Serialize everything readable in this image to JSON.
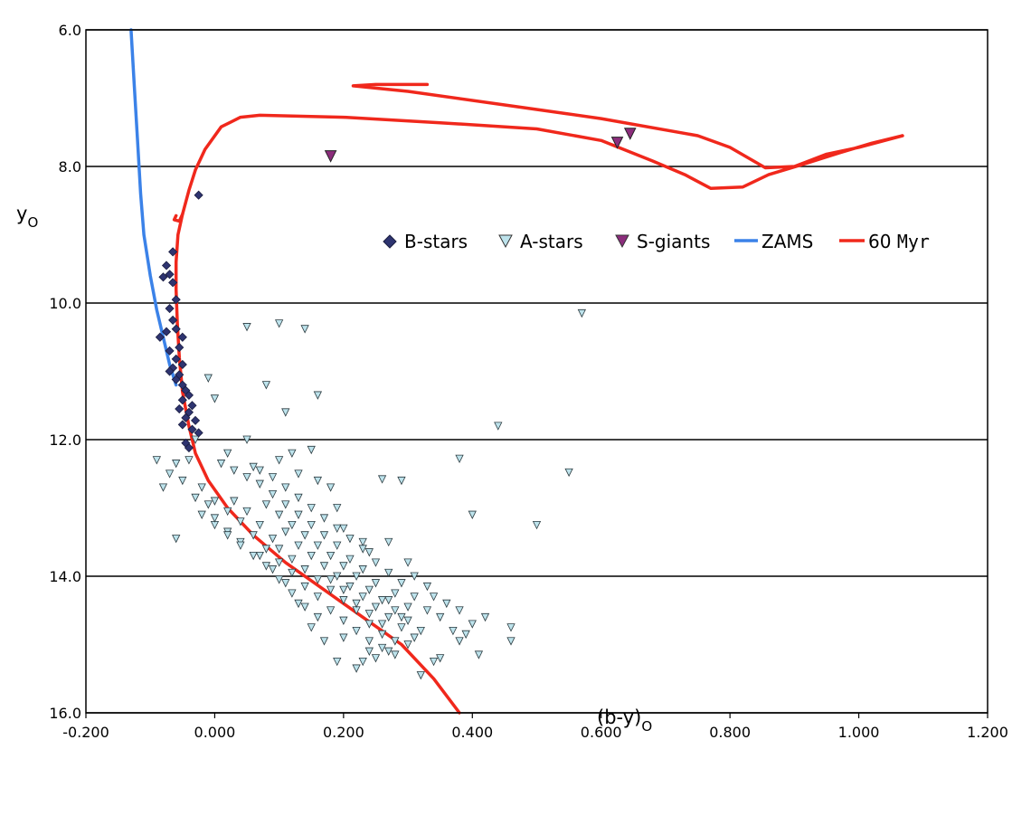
{
  "chart_data": {
    "type": "scatter",
    "title": "",
    "xlabel": "(b-y)",
    "xlabel_sub": "O",
    "ylabel": "y",
    "ylabel_sub": "O",
    "xlim": [
      -0.2,
      1.2
    ],
    "ylim": [
      16.0,
      6.0
    ],
    "y_inverted": true,
    "x_ticks": [
      -0.2,
      0.0,
      0.2,
      0.4,
      0.6,
      0.8,
      1.0,
      1.2
    ],
    "x_tick_labels": [
      "-0.200",
      "0.000",
      "0.200",
      "0.400",
      "0.600",
      "0.800",
      "1.000",
      "1.200"
    ],
    "y_ticks": [
      6.0,
      8.0,
      10.0,
      12.0,
      14.0,
      16.0
    ],
    "y_tick_labels": [
      "6.0",
      "8.0",
      "10.0",
      "12.0",
      "14.0",
      "16.0"
    ],
    "grid": "horizontal",
    "legend_position": "right-middle",
    "legend": [
      {
        "label": "B-stars",
        "marker": "diamond",
        "color": "#2e3470"
      },
      {
        "label": "A-stars",
        "marker": "triangle-down",
        "color": "#bde3ec"
      },
      {
        "label": "S-giants",
        "marker": "triangle-down",
        "color": "#8c2d7c"
      },
      {
        "label": "ZAMS",
        "marker": "line",
        "color": "#3b82e8"
      },
      {
        "label": "60 ",
        "label_mono": "Myr",
        "marker": "line",
        "color": "#f0281c"
      }
    ],
    "series": [
      {
        "name": "B-stars",
        "kind": "scatter",
        "marker": "diamond",
        "color": "#2e3470",
        "points": [
          [
            -0.025,
            8.42
          ],
          [
            -0.065,
            9.25
          ],
          [
            -0.075,
            9.45
          ],
          [
            -0.07,
            9.58
          ],
          [
            -0.08,
            9.62
          ],
          [
            -0.065,
            9.7
          ],
          [
            -0.06,
            9.95
          ],
          [
            -0.07,
            10.08
          ],
          [
            -0.065,
            10.25
          ],
          [
            -0.06,
            10.38
          ],
          [
            -0.075,
            10.42
          ],
          [
            -0.05,
            10.5
          ],
          [
            -0.085,
            10.5
          ],
          [
            -0.055,
            10.65
          ],
          [
            -0.07,
            10.7
          ],
          [
            -0.06,
            10.82
          ],
          [
            -0.05,
            10.9
          ],
          [
            -0.065,
            10.95
          ],
          [
            -0.07,
            11.0
          ],
          [
            -0.055,
            11.05
          ],
          [
            -0.06,
            11.12
          ],
          [
            -0.05,
            11.2
          ],
          [
            -0.045,
            11.28
          ],
          [
            -0.04,
            11.35
          ],
          [
            -0.05,
            11.42
          ],
          [
            -0.035,
            11.5
          ],
          [
            -0.055,
            11.55
          ],
          [
            -0.04,
            11.6
          ],
          [
            -0.045,
            11.68
          ],
          [
            -0.03,
            11.72
          ],
          [
            -0.05,
            11.78
          ],
          [
            -0.035,
            11.85
          ],
          [
            -0.025,
            11.9
          ],
          [
            -0.045,
            12.05
          ],
          [
            -0.04,
            12.12
          ]
        ]
      },
      {
        "name": "A-stars",
        "kind": "scatter",
        "marker": "triangle-down",
        "color": "#bde3ec",
        "points": [
          [
            0.05,
            10.35
          ],
          [
            0.1,
            10.3
          ],
          [
            0.14,
            10.38
          ],
          [
            0.57,
            10.15
          ],
          [
            0.08,
            11.2
          ],
          [
            0.16,
            11.35
          ],
          [
            -0.01,
            11.1
          ],
          [
            0.0,
            11.4
          ],
          [
            0.11,
            11.6
          ],
          [
            0.44,
            11.8
          ],
          [
            -0.03,
            12.0
          ],
          [
            0.05,
            12.0
          ],
          [
            0.38,
            12.28
          ],
          [
            0.55,
            12.48
          ],
          [
            0.26,
            12.58
          ],
          [
            0.29,
            12.6
          ],
          [
            0.4,
            13.1
          ],
          [
            0.5,
            13.25
          ],
          [
            -0.06,
            13.45
          ],
          [
            -0.09,
            12.3
          ],
          [
            -0.08,
            12.7
          ],
          [
            -0.07,
            12.5
          ],
          [
            -0.06,
            12.35
          ],
          [
            0.02,
            12.2
          ],
          [
            0.06,
            12.4
          ],
          [
            0.1,
            12.3
          ],
          [
            0.12,
            12.2
          ],
          [
            0.15,
            12.15
          ],
          [
            0.13,
            12.5
          ],
          [
            0.16,
            12.6
          ],
          [
            0.18,
            12.7
          ],
          [
            0.19,
            13.0
          ],
          [
            0.2,
            13.3
          ],
          [
            0.23,
            13.5
          ],
          [
            0.24,
            13.65
          ],
          [
            0.27,
            13.5
          ],
          [
            0.3,
            13.8
          ],
          [
            0.31,
            14.0
          ],
          [
            0.33,
            14.15
          ],
          [
            0.34,
            14.3
          ],
          [
            0.35,
            14.6
          ],
          [
            0.37,
            14.8
          ],
          [
            0.38,
            14.95
          ],
          [
            0.39,
            14.85
          ],
          [
            0.4,
            14.7
          ],
          [
            0.42,
            14.6
          ],
          [
            0.46,
            14.75
          ],
          [
            0.46,
            14.95
          ],
          [
            0.41,
            15.15
          ],
          [
            0.35,
            15.2
          ],
          [
            0.34,
            15.25
          ],
          [
            0.32,
            15.45
          ],
          [
            0.27,
            15.1
          ],
          [
            0.25,
            15.2
          ],
          [
            0.23,
            15.25
          ],
          [
            0.22,
            15.35
          ],
          [
            0.19,
            15.25
          ],
          [
            0.17,
            14.95
          ],
          [
            0.15,
            14.75
          ],
          [
            0.13,
            14.4
          ],
          [
            0.11,
            14.1
          ],
          [
            0.09,
            13.9
          ],
          [
            0.07,
            13.7
          ],
          [
            0.04,
            13.5
          ],
          [
            0.02,
            13.35
          ],
          [
            0.0,
            13.25
          ],
          [
            -0.02,
            13.1
          ],
          [
            -0.03,
            12.85
          ],
          [
            -0.05,
            12.6
          ],
          [
            -0.04,
            12.3
          ],
          [
            0.03,
            12.9
          ],
          [
            0.05,
            13.05
          ],
          [
            0.07,
            13.25
          ],
          [
            0.09,
            13.45
          ],
          [
            0.1,
            13.6
          ],
          [
            0.12,
            13.75
          ],
          [
            0.14,
            13.9
          ],
          [
            0.16,
            14.05
          ],
          [
            0.18,
            14.2
          ],
          [
            0.2,
            14.35
          ],
          [
            0.22,
            14.5
          ],
          [
            0.24,
            14.7
          ],
          [
            0.26,
            14.85
          ],
          [
            0.28,
            14.95
          ],
          [
            0.29,
            14.6
          ],
          [
            0.27,
            14.35
          ],
          [
            0.25,
            14.1
          ],
          [
            0.23,
            13.9
          ],
          [
            0.21,
            13.75
          ],
          [
            0.19,
            13.55
          ],
          [
            0.17,
            13.4
          ],
          [
            0.15,
            13.25
          ],
          [
            0.13,
            13.1
          ],
          [
            0.11,
            12.95
          ],
          [
            0.09,
            12.8
          ],
          [
            0.07,
            12.65
          ],
          [
            0.05,
            12.55
          ],
          [
            0.03,
            12.45
          ],
          [
            0.01,
            12.35
          ],
          [
            0.11,
            13.35
          ],
          [
            0.13,
            13.55
          ],
          [
            0.15,
            13.7
          ],
          [
            0.17,
            13.85
          ],
          [
            0.19,
            14.0
          ],
          [
            0.21,
            14.15
          ],
          [
            0.23,
            14.3
          ],
          [
            0.25,
            14.45
          ],
          [
            0.27,
            14.6
          ],
          [
            0.29,
            14.75
          ],
          [
            0.31,
            14.9
          ],
          [
            0.33,
            14.5
          ],
          [
            0.31,
            14.3
          ],
          [
            0.29,
            14.1
          ],
          [
            0.27,
            13.95
          ],
          [
            0.25,
            13.8
          ],
          [
            0.23,
            13.6
          ],
          [
            0.21,
            13.45
          ],
          [
            0.19,
            13.3
          ],
          [
            0.17,
            13.15
          ],
          [
            0.15,
            13.0
          ],
          [
            0.13,
            12.85
          ],
          [
            0.11,
            12.7
          ],
          [
            0.09,
            12.55
          ],
          [
            0.07,
            12.45
          ],
          [
            0.18,
            14.5
          ],
          [
            0.2,
            14.65
          ],
          [
            0.22,
            14.8
          ],
          [
            0.24,
            14.95
          ],
          [
            0.26,
            15.05
          ],
          [
            0.16,
            14.3
          ],
          [
            0.14,
            14.15
          ],
          [
            0.12,
            13.95
          ],
          [
            0.1,
            13.8
          ],
          [
            0.08,
            13.6
          ],
          [
            0.06,
            13.4
          ],
          [
            0.04,
            13.2
          ],
          [
            0.02,
            13.05
          ],
          [
            0.0,
            12.9
          ],
          [
            -0.02,
            12.7
          ],
          [
            0.36,
            14.4
          ],
          [
            0.38,
            14.5
          ],
          [
            0.3,
            15.0
          ],
          [
            0.28,
            15.15
          ],
          [
            0.24,
            15.1
          ],
          [
            0.2,
            14.9
          ],
          [
            0.16,
            14.6
          ],
          [
            0.14,
            14.45
          ],
          [
            0.12,
            14.25
          ],
          [
            0.1,
            14.05
          ],
          [
            0.08,
            13.85
          ],
          [
            0.06,
            13.7
          ],
          [
            0.04,
            13.55
          ],
          [
            0.02,
            13.4
          ],
          [
            0.0,
            13.15
          ],
          [
            -0.01,
            12.95
          ],
          [
            0.08,
            12.95
          ],
          [
            0.1,
            13.1
          ],
          [
            0.12,
            13.25
          ],
          [
            0.14,
            13.4
          ],
          [
            0.16,
            13.55
          ],
          [
            0.18,
            13.7
          ],
          [
            0.2,
            13.85
          ],
          [
            0.22,
            14.0
          ],
          [
            0.24,
            14.2
          ],
          [
            0.26,
            14.35
          ],
          [
            0.28,
            14.5
          ],
          [
            0.3,
            14.65
          ],
          [
            0.32,
            14.8
          ],
          [
            0.28,
            14.25
          ],
          [
            0.3,
            14.45
          ],
          [
            0.24,
            14.55
          ],
          [
            0.22,
            14.4
          ],
          [
            0.2,
            14.2
          ],
          [
            0.18,
            14.05
          ],
          [
            0.26,
            14.7
          ]
        ]
      },
      {
        "name": "S-giants",
        "kind": "scatter",
        "marker": "triangle-down",
        "color": "#8c2d7c",
        "points": [
          [
            0.18,
            7.85
          ],
          [
            0.625,
            7.65
          ],
          [
            0.645,
            7.52
          ]
        ]
      },
      {
        "name": "ZAMS",
        "kind": "line",
        "color": "#3b82e8",
        "points": [
          [
            -0.13,
            6.0
          ],
          [
            -0.125,
            6.8
          ],
          [
            -0.12,
            7.6
          ],
          [
            -0.115,
            8.4
          ],
          [
            -0.11,
            9.0
          ],
          [
            -0.1,
            9.6
          ],
          [
            -0.09,
            10.1
          ],
          [
            -0.08,
            10.5
          ],
          [
            -0.07,
            10.9
          ],
          [
            -0.06,
            11.2
          ]
        ]
      },
      {
        "name": "60 Myr",
        "kind": "line",
        "color": "#f0281c",
        "points": [
          [
            0.38,
            16.0
          ],
          [
            0.34,
            15.5
          ],
          [
            0.29,
            15.0
          ],
          [
            0.23,
            14.6
          ],
          [
            0.17,
            14.2
          ],
          [
            0.11,
            13.8
          ],
          [
            0.06,
            13.4
          ],
          [
            0.02,
            13.0
          ],
          [
            -0.01,
            12.6
          ],
          [
            -0.03,
            12.2
          ],
          [
            -0.04,
            11.8
          ],
          [
            -0.05,
            11.3
          ],
          [
            -0.055,
            10.8
          ],
          [
            -0.058,
            10.3
          ],
          [
            -0.06,
            9.8
          ],
          [
            -0.06,
            9.4
          ],
          [
            -0.057,
            9.0
          ],
          [
            -0.05,
            8.7
          ],
          [
            -0.04,
            8.35
          ],
          [
            -0.03,
            8.05
          ],
          [
            -0.015,
            7.75
          ],
          [
            0.01,
            7.42
          ],
          [
            0.04,
            7.28
          ],
          [
            0.07,
            7.25
          ],
          [
            0.2,
            7.28
          ],
          [
            0.35,
            7.36
          ],
          [
            0.5,
            7.45
          ],
          [
            0.6,
            7.62
          ],
          [
            0.68,
            7.92
          ],
          [
            0.73,
            8.12
          ],
          [
            0.77,
            8.32
          ],
          [
            0.82,
            8.3
          ],
          [
            0.86,
            8.12
          ],
          [
            0.92,
            7.95
          ],
          [
            0.97,
            7.8
          ],
          [
            1.02,
            7.66
          ],
          [
            1.068,
            7.55
          ],
          [
            1.0,
            7.72
          ],
          [
            0.95,
            7.82
          ],
          [
            0.9,
            8.0
          ],
          [
            0.855,
            8.02
          ],
          [
            0.8,
            7.72
          ],
          [
            0.75,
            7.55
          ],
          [
            0.6,
            7.3
          ],
          [
            0.45,
            7.1
          ],
          [
            0.3,
            6.9
          ],
          [
            0.215,
            6.82
          ],
          [
            0.25,
            6.8
          ],
          [
            0.33,
            6.8
          ]
        ]
      },
      {
        "name": "60 Myr hook",
        "kind": "line",
        "color": "#f0281c",
        "points": [
          [
            -0.06,
            8.72
          ],
          [
            -0.063,
            8.78
          ],
          [
            -0.055,
            8.8
          ],
          [
            -0.05,
            8.7
          ]
        ]
      }
    ]
  }
}
